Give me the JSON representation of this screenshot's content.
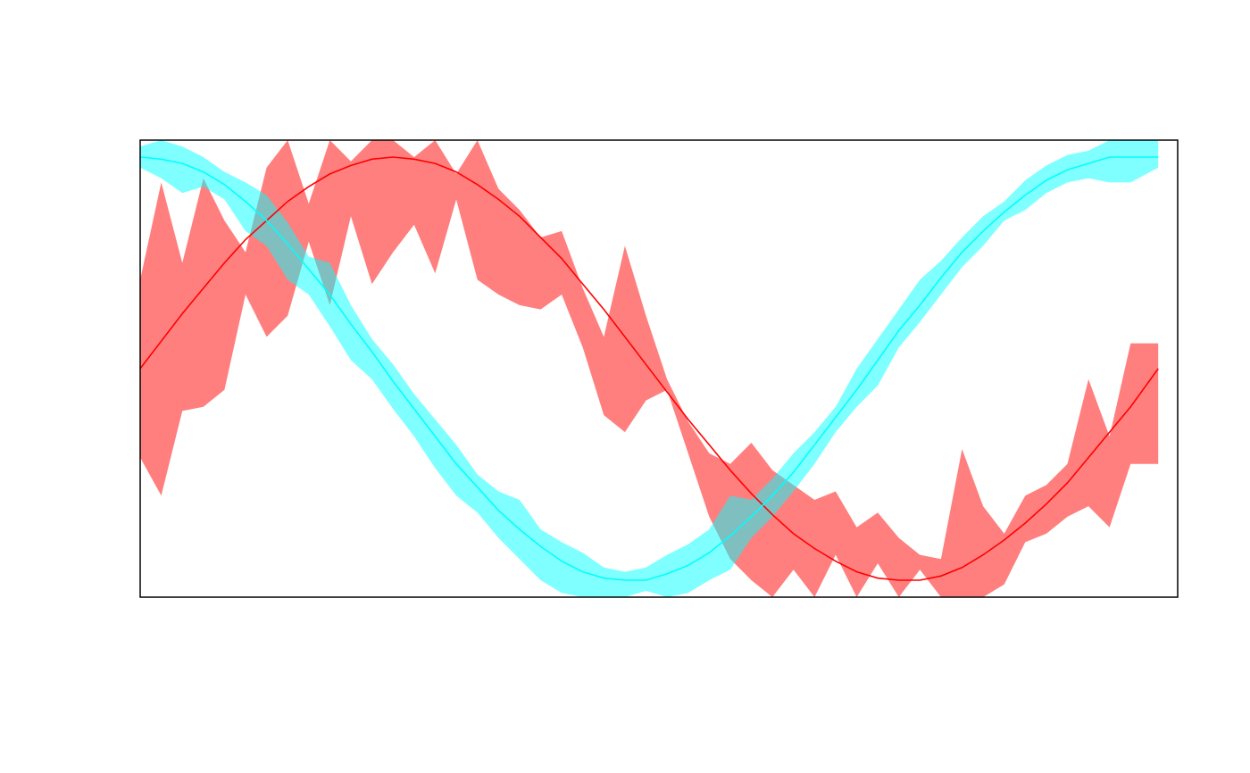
{
  "chart_data": {
    "type": "area",
    "title": "",
    "xlabel": "",
    "ylabel": "",
    "xlim": [
      0,
      6.4
    ],
    "ylim": [
      -1.08,
      1.08
    ],
    "grid": false,
    "legend": "none",
    "colors": {
      "red_band": "#FF0000",
      "cyan_band": "#00FFFF",
      "red_line": "#FF0000",
      "cyan_line": "#00FFFF",
      "frame": "#000000"
    },
    "x": [
      0.0,
      0.13,
      0.26,
      0.39,
      0.52,
      0.65,
      0.78,
      0.91,
      1.04,
      1.17,
      1.3,
      1.43,
      1.56,
      1.69,
      1.82,
      1.95,
      2.08,
      2.21,
      2.34,
      2.47,
      2.6,
      2.73,
      2.86,
      2.99,
      3.12,
      3.25,
      3.38,
      3.51,
      3.64,
      3.77,
      3.9,
      4.03,
      4.16,
      4.29,
      4.42,
      4.55,
      4.68,
      4.81,
      4.94,
      5.07,
      5.2,
      5.33,
      5.46,
      5.59,
      5.72,
      5.85,
      5.98,
      6.11,
      6.28
    ],
    "series": [
      {
        "role": "red",
        "line": [
          0.0,
          0.13,
          0.26,
          0.38,
          0.5,
          0.61,
          0.7,
          0.79,
          0.86,
          0.92,
          0.96,
          0.99,
          1.0,
          0.99,
          0.97,
          0.93,
          0.87,
          0.8,
          0.72,
          0.62,
          0.52,
          0.4,
          0.28,
          0.15,
          0.02,
          -0.11,
          -0.24,
          -0.36,
          -0.48,
          -0.59,
          -0.69,
          -0.78,
          -0.85,
          -0.91,
          -0.96,
          -0.99,
          -1.0,
          -1.0,
          -0.98,
          -0.94,
          -0.88,
          -0.81,
          -0.73,
          -0.64,
          -0.54,
          -0.42,
          -0.3,
          -0.18,
          0.0
        ],
        "lower": [
          -0.42,
          -0.6,
          -0.2,
          -0.18,
          -0.1,
          0.35,
          0.15,
          0.25,
          0.6,
          0.3,
          0.72,
          0.4,
          0.55,
          0.68,
          0.45,
          0.8,
          0.42,
          0.35,
          0.3,
          0.28,
          0.35,
          0.1,
          -0.22,
          -0.3,
          -0.15,
          -0.1,
          -0.4,
          -0.7,
          -0.9,
          -1.0,
          -1.08,
          -0.95,
          -1.08,
          -0.88,
          -1.08,
          -0.92,
          -1.08,
          -0.95,
          -1.08,
          -1.08,
          -1.08,
          -1.02,
          -0.82,
          -0.78,
          -0.7,
          -0.65,
          -0.75,
          -0.45,
          -0.45
        ],
        "upper": [
          0.42,
          0.88,
          0.5,
          0.9,
          0.7,
          0.55,
          0.95,
          1.08,
          0.78,
          1.08,
          0.98,
          1.08,
          1.08,
          1.0,
          1.08,
          0.92,
          1.08,
          0.85,
          0.75,
          0.62,
          0.65,
          0.38,
          0.15,
          0.58,
          0.25,
          -0.05,
          -0.25,
          -0.4,
          -0.45,
          -0.35,
          -0.48,
          -0.55,
          -0.62,
          -0.58,
          -0.75,
          -0.68,
          -0.8,
          -0.88,
          -0.9,
          -0.38,
          -0.65,
          -0.78,
          -0.6,
          -0.55,
          -0.45,
          -0.05,
          -0.32,
          0.12,
          0.12
        ]
      },
      {
        "role": "cyan",
        "line": [
          1.0,
          0.99,
          0.97,
          0.93,
          0.87,
          0.79,
          0.7,
          0.59,
          0.47,
          0.35,
          0.21,
          0.08,
          -0.06,
          -0.19,
          -0.32,
          -0.45,
          -0.56,
          -0.67,
          -0.76,
          -0.84,
          -0.91,
          -0.96,
          -0.99,
          -1.0,
          -1.0,
          -0.97,
          -0.93,
          -0.87,
          -0.79,
          -0.7,
          -0.6,
          -0.49,
          -0.36,
          -0.23,
          -0.1,
          0.04,
          0.18,
          0.3,
          0.43,
          0.55,
          0.65,
          0.74,
          0.82,
          0.89,
          0.94,
          0.97,
          1.0,
          1.0,
          1.0
        ],
        "lower": [
          0.95,
          0.9,
          0.83,
          0.86,
          0.8,
          0.65,
          0.58,
          0.42,
          0.35,
          0.2,
          0.04,
          -0.05,
          -0.19,
          -0.32,
          -0.47,
          -0.6,
          -0.68,
          -0.8,
          -0.9,
          -1.0,
          -1.06,
          -1.08,
          -1.08,
          -1.08,
          -1.05,
          -1.08,
          -1.06,
          -1.0,
          -0.95,
          -0.8,
          -0.7,
          -0.58,
          -0.45,
          -0.3,
          -0.18,
          -0.08,
          0.1,
          0.22,
          0.35,
          0.48,
          0.58,
          0.7,
          0.75,
          0.83,
          0.88,
          0.9,
          0.88,
          0.88,
          0.95
        ],
        "upper": [
          1.05,
          1.08,
          1.05,
          1.0,
          0.93,
          0.88,
          0.82,
          0.69,
          0.53,
          0.5,
          0.3,
          0.14,
          0.02,
          -0.12,
          -0.24,
          -0.36,
          -0.5,
          -0.58,
          -0.62,
          -0.76,
          -0.82,
          -0.87,
          -0.94,
          -0.96,
          -0.94,
          -0.88,
          -0.83,
          -0.76,
          -0.6,
          -0.62,
          -0.52,
          -0.4,
          -0.3,
          -0.18,
          0.0,
          0.14,
          0.28,
          0.42,
          0.51,
          0.62,
          0.72,
          0.79,
          0.89,
          0.96,
          1.01,
          1.03,
          1.08,
          1.08,
          1.08
        ]
      }
    ]
  }
}
